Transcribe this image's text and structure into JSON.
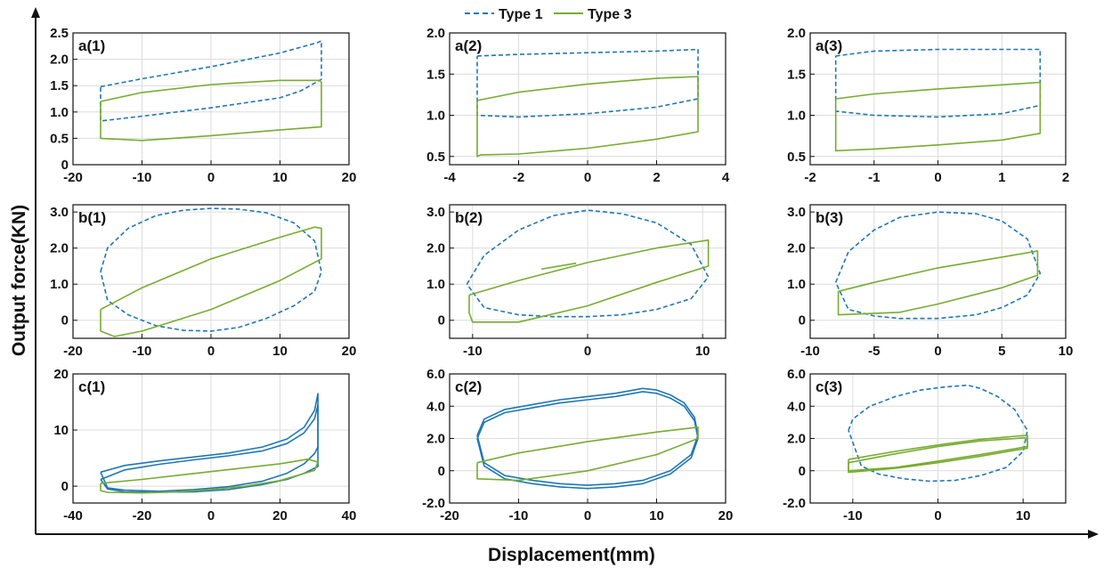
{
  "figure": {
    "xlabel": "Displacement(mm)",
    "ylabel": "Output force(KN)"
  },
  "legend": [
    {
      "name": "Type 1",
      "color": "#1f77b4",
      "style": "dashed"
    },
    {
      "name": "Type 3",
      "color": "#77ac30",
      "style": "solid"
    }
  ],
  "chart_data": [
    {
      "id": "a1",
      "type": "line",
      "title": "a(1)",
      "xlim": [
        -20,
        20
      ],
      "ylim": [
        0,
        2.5
      ],
      "xticks": [
        "-20",
        "-10",
        "0",
        "10",
        "20"
      ],
      "yticks": [
        "0",
        "0.5",
        "1.0",
        "1.5",
        "2.0",
        "2.5"
      ],
      "grid": true,
      "series": [
        {
          "name": "Type 1",
          "style": "dashed",
          "color": "#1f77b4",
          "x": [
            -16,
            -10,
            0,
            10,
            15.5,
            16,
            16,
            13,
            10,
            0,
            -10,
            -16,
            -16
          ],
          "y": [
            1.48,
            1.63,
            1.86,
            2.12,
            2.32,
            2.35,
            1.62,
            1.4,
            1.27,
            1.08,
            0.92,
            0.83,
            1.48
          ]
        },
        {
          "name": "Type 3",
          "style": "solid",
          "color": "#77ac30",
          "x": [
            -16,
            -10,
            0,
            10,
            15.7,
            16,
            16,
            10,
            0,
            -10,
            -16,
            -16
          ],
          "y": [
            1.2,
            1.37,
            1.52,
            1.6,
            1.6,
            1.56,
            0.72,
            0.66,
            0.55,
            0.46,
            0.5,
            1.2
          ]
        }
      ]
    },
    {
      "id": "a2",
      "type": "line",
      "title": "a(2)",
      "xlim": [
        -4,
        4
      ],
      "ylim": [
        0.4,
        2.0
      ],
      "xticks": [
        "-4",
        "-2",
        "0",
        "2",
        "4"
      ],
      "yticks": [
        "0.5",
        "1.0",
        "1.5",
        "2.0"
      ],
      "grid": true,
      "series": [
        {
          "name": "Type 1",
          "style": "dashed",
          "color": "#1f77b4",
          "x": [
            -3.2,
            -2,
            0,
            2,
            3.2,
            3.2,
            2,
            0,
            -2,
            -3.2,
            -3.2
          ],
          "y": [
            1.72,
            1.74,
            1.76,
            1.78,
            1.8,
            1.2,
            1.1,
            1.02,
            0.98,
            1.0,
            1.72
          ]
        },
        {
          "name": "Type 3",
          "style": "solid",
          "color": "#77ac30",
          "x": [
            -3.2,
            -2,
            0,
            2,
            3.2,
            3.2,
            2,
            0,
            -2,
            -3.1,
            -3.2,
            -3.2
          ],
          "y": [
            1.18,
            1.28,
            1.38,
            1.45,
            1.47,
            0.8,
            0.71,
            0.6,
            0.53,
            0.52,
            0.5,
            1.18
          ]
        }
      ]
    },
    {
      "id": "a3",
      "type": "line",
      "title": "a(3)",
      "xlim": [
        -2,
        2
      ],
      "ylim": [
        0.4,
        2.0
      ],
      "xticks": [
        "-2",
        "-1",
        "0",
        "1",
        "2"
      ],
      "yticks": [
        "0.5",
        "1.0",
        "1.5",
        "2.0"
      ],
      "grid": true,
      "series": [
        {
          "name": "Type 1",
          "style": "dashed",
          "color": "#1f77b4",
          "x": [
            -1.6,
            -1,
            0,
            1,
            1.6,
            1.6,
            1,
            0,
            -1,
            -1.6,
            -1.6
          ],
          "y": [
            1.72,
            1.78,
            1.8,
            1.8,
            1.8,
            1.12,
            1.02,
            0.98,
            1.0,
            1.05,
            1.72
          ]
        },
        {
          "name": "Type 3",
          "style": "solid",
          "color": "#77ac30",
          "x": [
            -1.6,
            -1,
            0,
            1,
            1.6,
            1.6,
            1,
            0,
            -1,
            -1.6,
            -1.6
          ],
          "y": [
            1.2,
            1.26,
            1.32,
            1.37,
            1.4,
            0.78,
            0.7,
            0.64,
            0.59,
            0.57,
            1.2
          ]
        }
      ]
    },
    {
      "id": "b1",
      "type": "line",
      "title": "b(1)",
      "xlim": [
        -20,
        20
      ],
      "ylim": [
        -0.5,
        3.2
      ],
      "xticks": [
        "-20",
        "-10",
        "0",
        "10",
        "20"
      ],
      "yticks": [
        "0",
        "1.0",
        "2.0",
        "3.0"
      ],
      "grid": true,
      "series": [
        {
          "name": "Type 1",
          "style": "dashed",
          "color": "#1f77b4",
          "x": [
            -16,
            -15,
            -12,
            -8,
            -4,
            0,
            4,
            8,
            12,
            15,
            16,
            15,
            12,
            8,
            4,
            0,
            -4,
            -8,
            -12,
            -15,
            -16
          ],
          "y": [
            1.35,
            2.0,
            2.55,
            2.9,
            3.05,
            3.1,
            3.08,
            2.98,
            2.7,
            2.2,
            1.35,
            0.8,
            0.4,
            0.05,
            -0.2,
            -0.3,
            -0.28,
            -0.15,
            0.15,
            0.55,
            1.35
          ]
        },
        {
          "name": "Type 3",
          "style": "solid",
          "color": "#77ac30",
          "x": [
            -16,
            -10,
            0,
            10,
            15,
            16,
            16,
            10,
            0,
            -10,
            -14,
            -16,
            -16
          ],
          "y": [
            0.3,
            0.9,
            1.7,
            2.3,
            2.58,
            2.55,
            1.7,
            1.1,
            0.3,
            -0.3,
            -0.45,
            -0.3,
            0.3
          ]
        }
      ]
    },
    {
      "id": "b2",
      "type": "line",
      "title": "b(2)",
      "xlim": [
        -12,
        12
      ],
      "ylim": [
        -0.5,
        3.2
      ],
      "xticks": [
        "-10",
        "0",
        "10"
      ],
      "yticks": [
        "0",
        "1.0",
        "2.0",
        "3.0"
      ],
      "grid": true,
      "series": [
        {
          "name": "Type 1",
          "style": "dashed",
          "color": "#1f77b4",
          "x": [
            -10.5,
            -9,
            -6,
            -3,
            0,
            3,
            6,
            9,
            10.5,
            9,
            6,
            3,
            0,
            -3,
            -6,
            -9,
            -10.5
          ],
          "y": [
            1.0,
            1.8,
            2.5,
            2.9,
            3.05,
            2.95,
            2.7,
            2.1,
            1.2,
            0.6,
            0.3,
            0.15,
            0.1,
            0.1,
            0.15,
            0.35,
            1.0
          ]
        },
        {
          "name": "Type 3",
          "style": "solid",
          "color": "#77ac30",
          "x": [
            -10.3,
            -6,
            0,
            6,
            10.5,
            10.5,
            6,
            0,
            -6,
            -10,
            -10.3,
            -10.3
          ],
          "y": [
            0.7,
            1.1,
            1.6,
            2.0,
            2.22,
            1.5,
            1.05,
            0.4,
            -0.05,
            -0.05,
            0.2,
            0.7
          ]
        },
        {
          "name": "Type 3",
          "style": "solid",
          "color": "#77ac30",
          "x": [
            -4,
            -1
          ],
          "y": [
            1.42,
            1.58
          ]
        }
      ]
    },
    {
      "id": "b3",
      "type": "line",
      "title": "b(3)",
      "xlim": [
        -10,
        10
      ],
      "ylim": [
        -0.5,
        3.2
      ],
      "xticks": [
        "-10",
        "-5",
        "0",
        "5",
        "10"
      ],
      "yticks": [
        "0",
        "1.0",
        "2.0",
        "3.0"
      ],
      "grid": true,
      "series": [
        {
          "name": "Type 1",
          "style": "dashed",
          "color": "#1f77b4",
          "x": [
            -8,
            -7,
            -5,
            -3,
            0,
            3,
            5,
            7,
            8,
            7,
            5,
            3,
            0,
            -3,
            -5,
            -7,
            -8
          ],
          "y": [
            1.05,
            1.9,
            2.5,
            2.85,
            3.0,
            2.95,
            2.75,
            2.25,
            1.3,
            0.7,
            0.35,
            0.15,
            0.05,
            0.05,
            0.12,
            0.3,
            1.05
          ]
        },
        {
          "name": "Type 3",
          "style": "solid",
          "color": "#77ac30",
          "x": [
            -7.8,
            -5,
            0,
            5,
            7.8,
            7.8,
            5,
            0,
            -3,
            -7.8,
            -7.8
          ],
          "y": [
            0.8,
            1.05,
            1.45,
            1.75,
            1.92,
            1.25,
            0.9,
            0.45,
            0.22,
            0.15,
            0.8
          ]
        }
      ]
    },
    {
      "id": "c1",
      "type": "line",
      "title": "c(1)",
      "xlim": [
        -40,
        40
      ],
      "ylim": [
        -3,
        20
      ],
      "xticks": [
        "-40",
        "-20",
        "0",
        "20",
        "40"
      ],
      "yticks": [
        "0",
        "10",
        "20"
      ],
      "grid": true,
      "series": [
        {
          "name": "Type 1",
          "style": "solid",
          "color": "#1f77b4",
          "x": [
            -32,
            -25,
            -15,
            -5,
            5,
            15,
            22,
            27,
            30,
            31,
            31,
            30,
            27,
            22,
            15,
            5,
            -5,
            -15,
            -25,
            -30,
            -32
          ],
          "y": [
            2.5,
            3.7,
            4.5,
            5.2,
            5.9,
            7.0,
            8.4,
            10.5,
            13.5,
            16.5,
            7.0,
            5.8,
            4.0,
            2.3,
            0.9,
            -0.1,
            -0.6,
            -0.9,
            -0.7,
            -0.3,
            2.5
          ]
        },
        {
          "name": "Type 1",
          "style": "solid",
          "color": "#1f77b4",
          "x": [
            -32,
            -25,
            -15,
            -5,
            5,
            15,
            22,
            27,
            30,
            31,
            31,
            30,
            27,
            22,
            15,
            5,
            -5,
            -15,
            -25,
            -30,
            -32
          ],
          "y": [
            1.2,
            2.9,
            3.9,
            4.7,
            5.4,
            6.3,
            7.6,
            9.5,
            12.0,
            14.5,
            3.5,
            3.2,
            2.3,
            1.2,
            0.3,
            -0.6,
            -1.0,
            -1.1,
            -1.0,
            -0.5,
            1.2
          ]
        },
        {
          "name": "Type 3",
          "style": "solid",
          "color": "#77ac30",
          "x": [
            -32,
            -20,
            -10,
            0,
            10,
            20,
            28,
            31,
            30,
            20,
            10,
            0,
            -10,
            -20,
            -30,
            -32,
            -32
          ],
          "y": [
            0.5,
            1.2,
            1.9,
            2.6,
            3.3,
            4.0,
            4.8,
            4.3,
            2.8,
            1.0,
            0.0,
            -0.6,
            -1.0,
            -1.2,
            -1.1,
            -0.8,
            0.5
          ]
        }
      ]
    },
    {
      "id": "c2",
      "type": "line",
      "title": "c(2)",
      "xlim": [
        -20,
        20
      ],
      "ylim": [
        -2,
        6
      ],
      "xticks": [
        "-20",
        "-10",
        "0",
        "10",
        "20"
      ],
      "yticks": [
        "-2.0",
        "0",
        "2.0",
        "4.0",
        "6.0"
      ],
      "grid": true,
      "series": [
        {
          "name": "Type 1",
          "style": "solid",
          "color": "#1f77b4",
          "x": [
            -16,
            -15,
            -12,
            -8,
            -4,
            0,
            4,
            8,
            10,
            12,
            14,
            15.5,
            16,
            15,
            12,
            8,
            4,
            0,
            -4,
            -8,
            -12,
            -15,
            -16
          ],
          "y": [
            2.2,
            3.2,
            3.8,
            4.1,
            4.4,
            4.6,
            4.8,
            5.1,
            5.0,
            4.7,
            4.2,
            3.3,
            2.2,
            1.0,
            0.0,
            -0.6,
            -0.8,
            -0.9,
            -0.8,
            -0.6,
            -0.3,
            0.5,
            2.2
          ]
        },
        {
          "name": "Type 1",
          "style": "solid",
          "color": "#1f77b4",
          "x": [
            -16,
            -15,
            -12,
            -8,
            -4,
            0,
            4,
            8,
            10,
            12,
            14,
            15.5,
            16,
            15,
            12,
            8,
            4,
            0,
            -4,
            -8,
            -12,
            -15,
            -16
          ],
          "y": [
            2.0,
            3.0,
            3.6,
            3.9,
            4.2,
            4.4,
            4.6,
            4.9,
            4.8,
            4.5,
            4.0,
            3.1,
            2.0,
            0.8,
            -0.2,
            -0.8,
            -1.0,
            -1.1,
            -1.0,
            -0.8,
            -0.5,
            0.3,
            2.0
          ]
        },
        {
          "name": "Type 3",
          "style": "solid",
          "color": "#77ac30",
          "x": [
            -16,
            -10,
            0,
            10,
            16,
            16,
            10,
            0,
            -10,
            -16,
            -16
          ],
          "y": [
            0.5,
            1.1,
            1.8,
            2.4,
            2.7,
            2.0,
            1.0,
            0.0,
            -0.6,
            -0.5,
            0.5
          ]
        }
      ]
    },
    {
      "id": "c3",
      "type": "line",
      "title": "c(3)",
      "xlim": [
        -15,
        15
      ],
      "ylim": [
        -2,
        6
      ],
      "xticks": [
        "-10",
        "0",
        "10"
      ],
      "yticks": [
        "-2.0",
        "0",
        "2.0",
        "4.0",
        "6.0"
      ],
      "grid": true,
      "series": [
        {
          "name": "Type 1",
          "style": "dashed",
          "color": "#1f77b4",
          "x": [
            -10.5,
            -10,
            -8,
            -5,
            -2,
            1,
            3.5,
            5,
            7,
            9,
            10.5,
            10,
            8,
            5,
            2,
            -1,
            -4,
            -7,
            -9,
            -10.5
          ],
          "y": [
            2.5,
            3.2,
            4.0,
            4.6,
            5.0,
            5.2,
            5.3,
            5.1,
            4.6,
            3.8,
            2.5,
            1.2,
            0.2,
            -0.3,
            -0.6,
            -0.65,
            -0.5,
            -0.2,
            0.3,
            2.5
          ]
        },
        {
          "name": "Type 3",
          "style": "solid",
          "color": "#77ac30",
          "x": [
            -10.5,
            -5,
            0,
            5,
            10.5,
            10.5,
            5,
            0,
            -5,
            -10.5,
            -10.5
          ],
          "y": [
            0.7,
            1.2,
            1.6,
            1.95,
            2.2,
            1.4,
            0.9,
            0.5,
            0.15,
            -0.1,
            0.7
          ]
        },
        {
          "name": "Type 3",
          "style": "solid",
          "color": "#77ac30",
          "x": [
            -10.5,
            -5,
            0,
            5,
            10.5,
            10.5,
            5,
            0,
            -5,
            -10.5,
            -10.5
          ],
          "y": [
            0.5,
            1.05,
            1.5,
            1.85,
            2.05,
            1.5,
            1.0,
            0.6,
            0.2,
            0.0,
            0.5
          ]
        }
      ]
    }
  ]
}
